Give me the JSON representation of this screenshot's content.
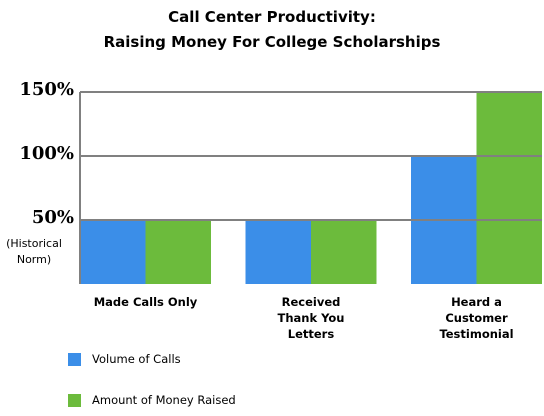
{
  "chart_data": {
    "type": "bar",
    "title": "Call Center Productivity:",
    "subtitle": "Raising Money For College Scholarships",
    "categories": [
      "Made Calls Only",
      "Received Thank You Letters",
      "Heard a Customer Testimonial"
    ],
    "series": [
      {
        "name": "Volume of Calls",
        "color": "#3b8ee8",
        "values": [
          50,
          50,
          100
        ]
      },
      {
        "name": "Amount of Money Raised",
        "color": "#6cbb3c",
        "values": [
          50,
          50,
          150
        ]
      }
    ],
    "ylim": [
      0,
      150
    ],
    "yticks": [
      {
        "value": 50,
        "label": "50%"
      },
      {
        "value": 100,
        "label": "100%"
      },
      {
        "value": 150,
        "label": "150%"
      }
    ],
    "annotation": "(Historical Norm)",
    "grid": true
  }
}
